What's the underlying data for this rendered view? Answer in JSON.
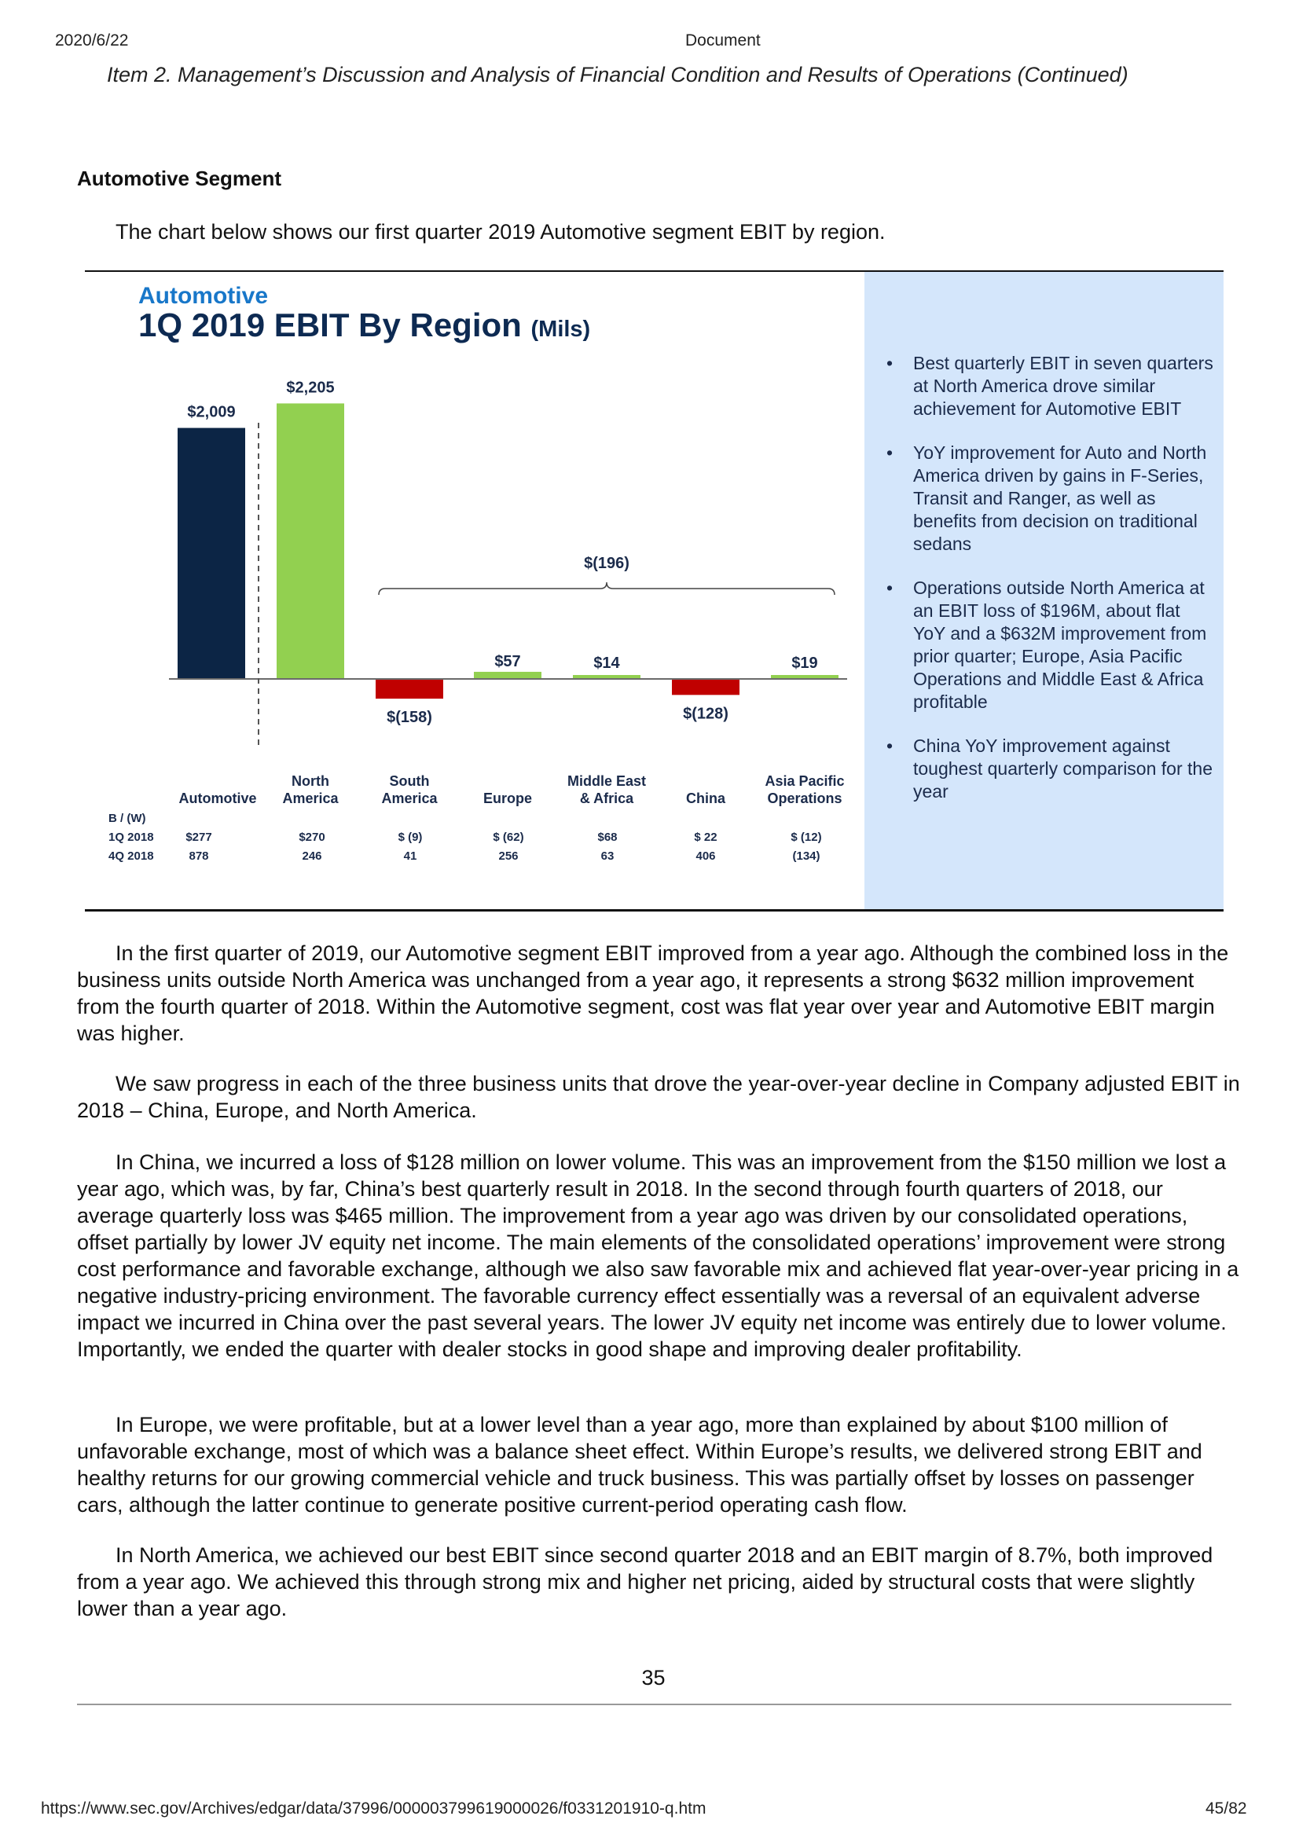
{
  "browser": {
    "date": "2020/6/22",
    "title": "Document",
    "url": "https://www.sec.gov/Archives/edgar/data/37996/000003799619000026/f0331201910-q.htm",
    "page_counter": "45/82"
  },
  "header": {
    "item_title": "Item 2. Management’s Discussion and Analysis of Financial Condition and Results of Operations (Continued)"
  },
  "section": {
    "title": "Automotive Segment",
    "intro": "The chart below shows our first quarter 2019 Automotive segment EBIT by region."
  },
  "slide": {
    "kicker": "Automotive",
    "title": "1Q 2019 EBIT By Region",
    "title_unit": "(Mils)",
    "bullets": [
      "Best quarterly EBIT in seven quarters at North America drove similar achievement for Automotive EBIT",
      "YoY improvement for Auto and North America driven by gains in F-Series, Transit and Ranger, as well as benefits from decision on traditional sedans",
      "Operations outside North America at an EBIT loss of $196M, about flat YoY and a $632M improvement from prior quarter; Europe, Asia Pacific Operations and Middle East & Africa profitable",
      "China YoY improvement against toughest quarterly comparison for the year"
    ],
    "bullet_glyph": "•",
    "bracket_label": "$(196)",
    "table": {
      "row_header": "B / (W)",
      "rows": [
        {
          "label": "1Q 2018",
          "values": [
            "$277",
            "$270",
            "$ (9)",
            "$ (62)",
            "$68",
            "$  22",
            "$  (12)"
          ]
        },
        {
          "label": "4Q 2018",
          "values": [
            "878",
            "246",
            "41",
            "256",
            "63",
            "406",
            "(134)"
          ]
        }
      ]
    }
  },
  "chart_data": {
    "type": "bar",
    "title": "1Q 2019 EBIT By Region (Mils)",
    "categories": [
      "Automotive",
      "North America",
      "South America",
      "Europe",
      "Middle East & Africa",
      "China",
      "Asia Pacific Operations"
    ],
    "category_lines": [
      [
        "Automotive"
      ],
      [
        "North",
        "America"
      ],
      [
        "South",
        "America"
      ],
      [
        "Europe"
      ],
      [
        "Middle East",
        "& Africa"
      ],
      [
        "China"
      ],
      [
        "Asia Pacific",
        "Operations"
      ]
    ],
    "values": [
      2009,
      2205,
      -158,
      57,
      14,
      -128,
      19
    ],
    "value_labels": [
      "$2,009",
      "$2,205",
      "$(158)",
      "$57",
      "$14",
      "$(128)",
      "$19"
    ],
    "colors": [
      "#0c2545",
      "#92d050",
      "#c00000",
      "#92d050",
      "#92d050",
      "#c00000",
      "#92d050"
    ],
    "ylim": [
      -600,
      2600
    ],
    "grid": false
  },
  "paragraphs": [
    "In the first quarter of 2019, our Automotive segment EBIT improved from a year ago. Although the combined loss in the business units outside North America was unchanged from a year ago, it represents a strong $632 million improvement from the fourth quarter of 2018. Within the Automotive segment, cost was flat year over year and Automotive EBIT margin was higher.",
    "We saw progress in each of the three business units that drove the year-over-year decline in Company adjusted EBIT in 2018 – China, Europe, and North America.",
    "In China, we incurred a loss of $128 million on lower volume. This was an improvement from the $150 million we lost a year ago, which was, by far, China’s best quarterly result in 2018. In the second through fourth quarters of 2018, our average quarterly loss was $465 million. The improvement from a year ago was driven by our consolidated operations, offset partially by lower JV equity net income. The main elements of the consolidated operations’ improvement were strong cost performance and favorable exchange, although we also saw favorable mix and achieved flat year-over-year pricing in a negative industry-pricing environment. The favorable currency effect essentially was a reversal of an equivalent adverse impact we incurred in China over the past several years. The lower JV equity net income was entirely due to lower volume. Importantly, we ended the quarter with dealer stocks in good shape and improving dealer profitability.",
    "In Europe, we were profitable, but at a lower level than a year ago, more than explained by about $100 million of unfavorable exchange, most of which was a balance sheet effect. Within Europe’s results, we delivered strong EBIT and healthy returns for our growing commercial vehicle and truck business. This was partially offset by losses on passenger cars, although the latter continue to generate positive current-period operating cash flow.",
    "In North America, we achieved our best EBIT since second quarter 2018 and an EBIT margin of 8.7%, both improved from a year ago. We achieved this through strong mix and higher net pricing, aided by structural costs that were slightly lower than a year ago."
  ],
  "page_number": "35"
}
